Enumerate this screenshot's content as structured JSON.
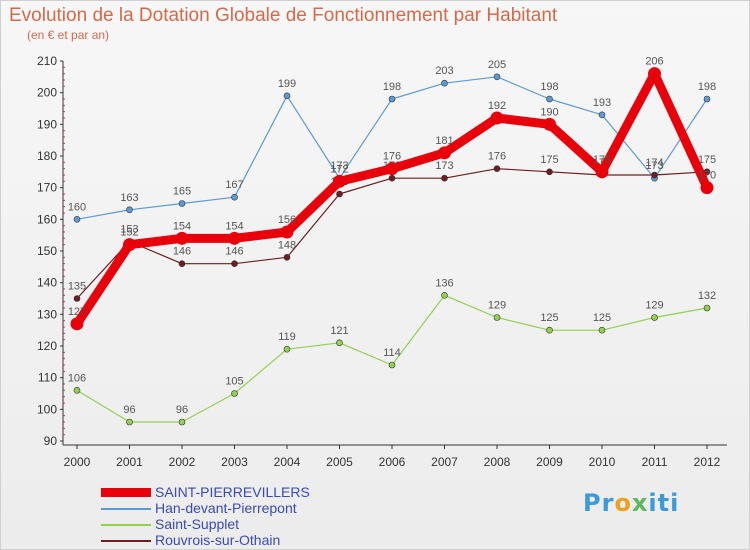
{
  "title": "Evolution de la Dotation Globale de Fonctionnement par Habitant",
  "subtitle": "(en € et par an)",
  "logo_text": "Proxiti",
  "chart_data": {
    "type": "line",
    "title": "Evolution de la Dotation Globale de Fonctionnement par Habitant",
    "subtitle": "(en € et par an)",
    "xlabel": "",
    "ylabel": "",
    "x": [
      "2000",
      "2001",
      "2002",
      "2003",
      "2004",
      "2005",
      "2006",
      "2007",
      "2008",
      "2009",
      "2010",
      "2011",
      "2012"
    ],
    "ylim": [
      90,
      210
    ],
    "yticks": [
      90,
      100,
      110,
      120,
      130,
      140,
      150,
      160,
      170,
      180,
      190,
      200,
      210
    ],
    "grid": false,
    "legend_position": "bottom-left",
    "series": [
      {
        "name": "SAINT-PIERREVILLERS",
        "color": "#e8000b",
        "width": 9,
        "values": [
          127,
          152,
          154,
          154,
          156,
          172,
          176,
          181,
          192,
          190,
          175,
          206,
          170
        ]
      },
      {
        "name": "Han-devant-Pierrepont",
        "color": "#5b9bd5",
        "width": 1.2,
        "values": [
          160,
          163,
          165,
          167,
          199,
          173,
          198,
          203,
          205,
          198,
          193,
          173,
          198
        ]
      },
      {
        "name": "Saint-Supplet",
        "color": "#92d050",
        "width": 1.2,
        "values": [
          106,
          96,
          96,
          105,
          119,
          121,
          114,
          136,
          129,
          125,
          125,
          129,
          132
        ]
      },
      {
        "name": "Rouvrois-sur-Othain",
        "color": "#6b1f22",
        "width": 1.2,
        "values": [
          135,
          153,
          146,
          146,
          148,
          168,
          173,
          173,
          176,
          175,
          174,
          174,
          175
        ]
      }
    ]
  }
}
